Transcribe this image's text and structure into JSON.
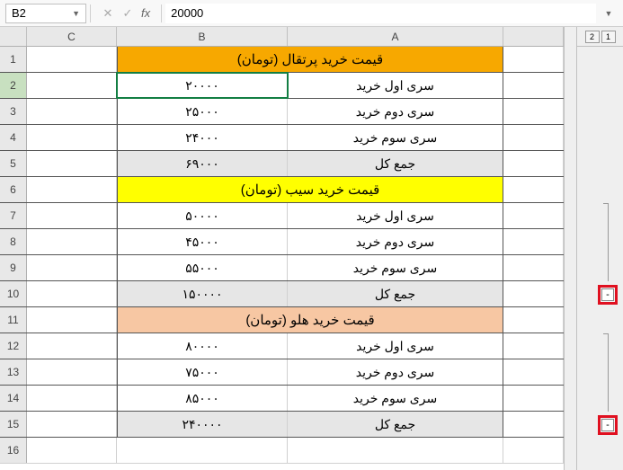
{
  "formula_bar": {
    "cell_ref": "B2",
    "fx": "fx",
    "value": "20000"
  },
  "columns": {
    "C": "C",
    "B": "B",
    "A": "A"
  },
  "outline": {
    "levels": [
      "2",
      "1"
    ],
    "collapse": "-"
  },
  "rows": [
    {
      "num": "1",
      "type": "header",
      "title": "قیمت خرید پرتقال (تومان)",
      "header_color": "#f7a800"
    },
    {
      "num": "2",
      "type": "data",
      "A": "سری اول خرید",
      "B": "۲۰۰۰۰",
      "selected": true
    },
    {
      "num": "3",
      "type": "data",
      "A": "سری دوم خرید",
      "B": "۲۵۰۰۰"
    },
    {
      "num": "4",
      "type": "data",
      "A": "سری سوم خرید",
      "B": "۲۴۰۰۰"
    },
    {
      "num": "5",
      "type": "total",
      "A": "جمع کل",
      "B": "۶۹۰۰۰"
    },
    {
      "num": "6",
      "type": "header",
      "title": "قیمت خرید سیب (تومان)",
      "header_color": "#ffff00"
    },
    {
      "num": "7",
      "type": "data",
      "A": "سری اول خرید",
      "B": "۵۰۰۰۰"
    },
    {
      "num": "8",
      "type": "data",
      "A": "سری دوم خرید",
      "B": "۴۵۰۰۰"
    },
    {
      "num": "9",
      "type": "data",
      "A": "سری سوم خرید",
      "B": "۵۵۰۰۰"
    },
    {
      "num": "10",
      "type": "total",
      "A": "جمع کل",
      "B": "۱۵۰۰۰۰",
      "collapse": true,
      "highlight": true
    },
    {
      "num": "11",
      "type": "header",
      "title": "قیمت خرید هلو (تومان)",
      "header_color": "#f7c7a3"
    },
    {
      "num": "12",
      "type": "data",
      "A": "سری اول خرید",
      "B": "۸۰۰۰۰"
    },
    {
      "num": "13",
      "type": "data",
      "A": "سری دوم خرید",
      "B": "۷۵۰۰۰"
    },
    {
      "num": "14",
      "type": "data",
      "A": "سری سوم خرید",
      "B": "۸۵۰۰۰"
    },
    {
      "num": "15",
      "type": "total",
      "A": "جمع کل",
      "B": "۲۴۰۰۰۰",
      "collapse": true,
      "highlight": true
    },
    {
      "num": "16",
      "type": "blank"
    }
  ],
  "colors": {
    "orange": "#f7a800",
    "yellow": "#ffff00",
    "peach": "#f7c7a3",
    "total_bg": "#e6e6e6",
    "selection": "#137e43",
    "highlight": "#e01020"
  }
}
